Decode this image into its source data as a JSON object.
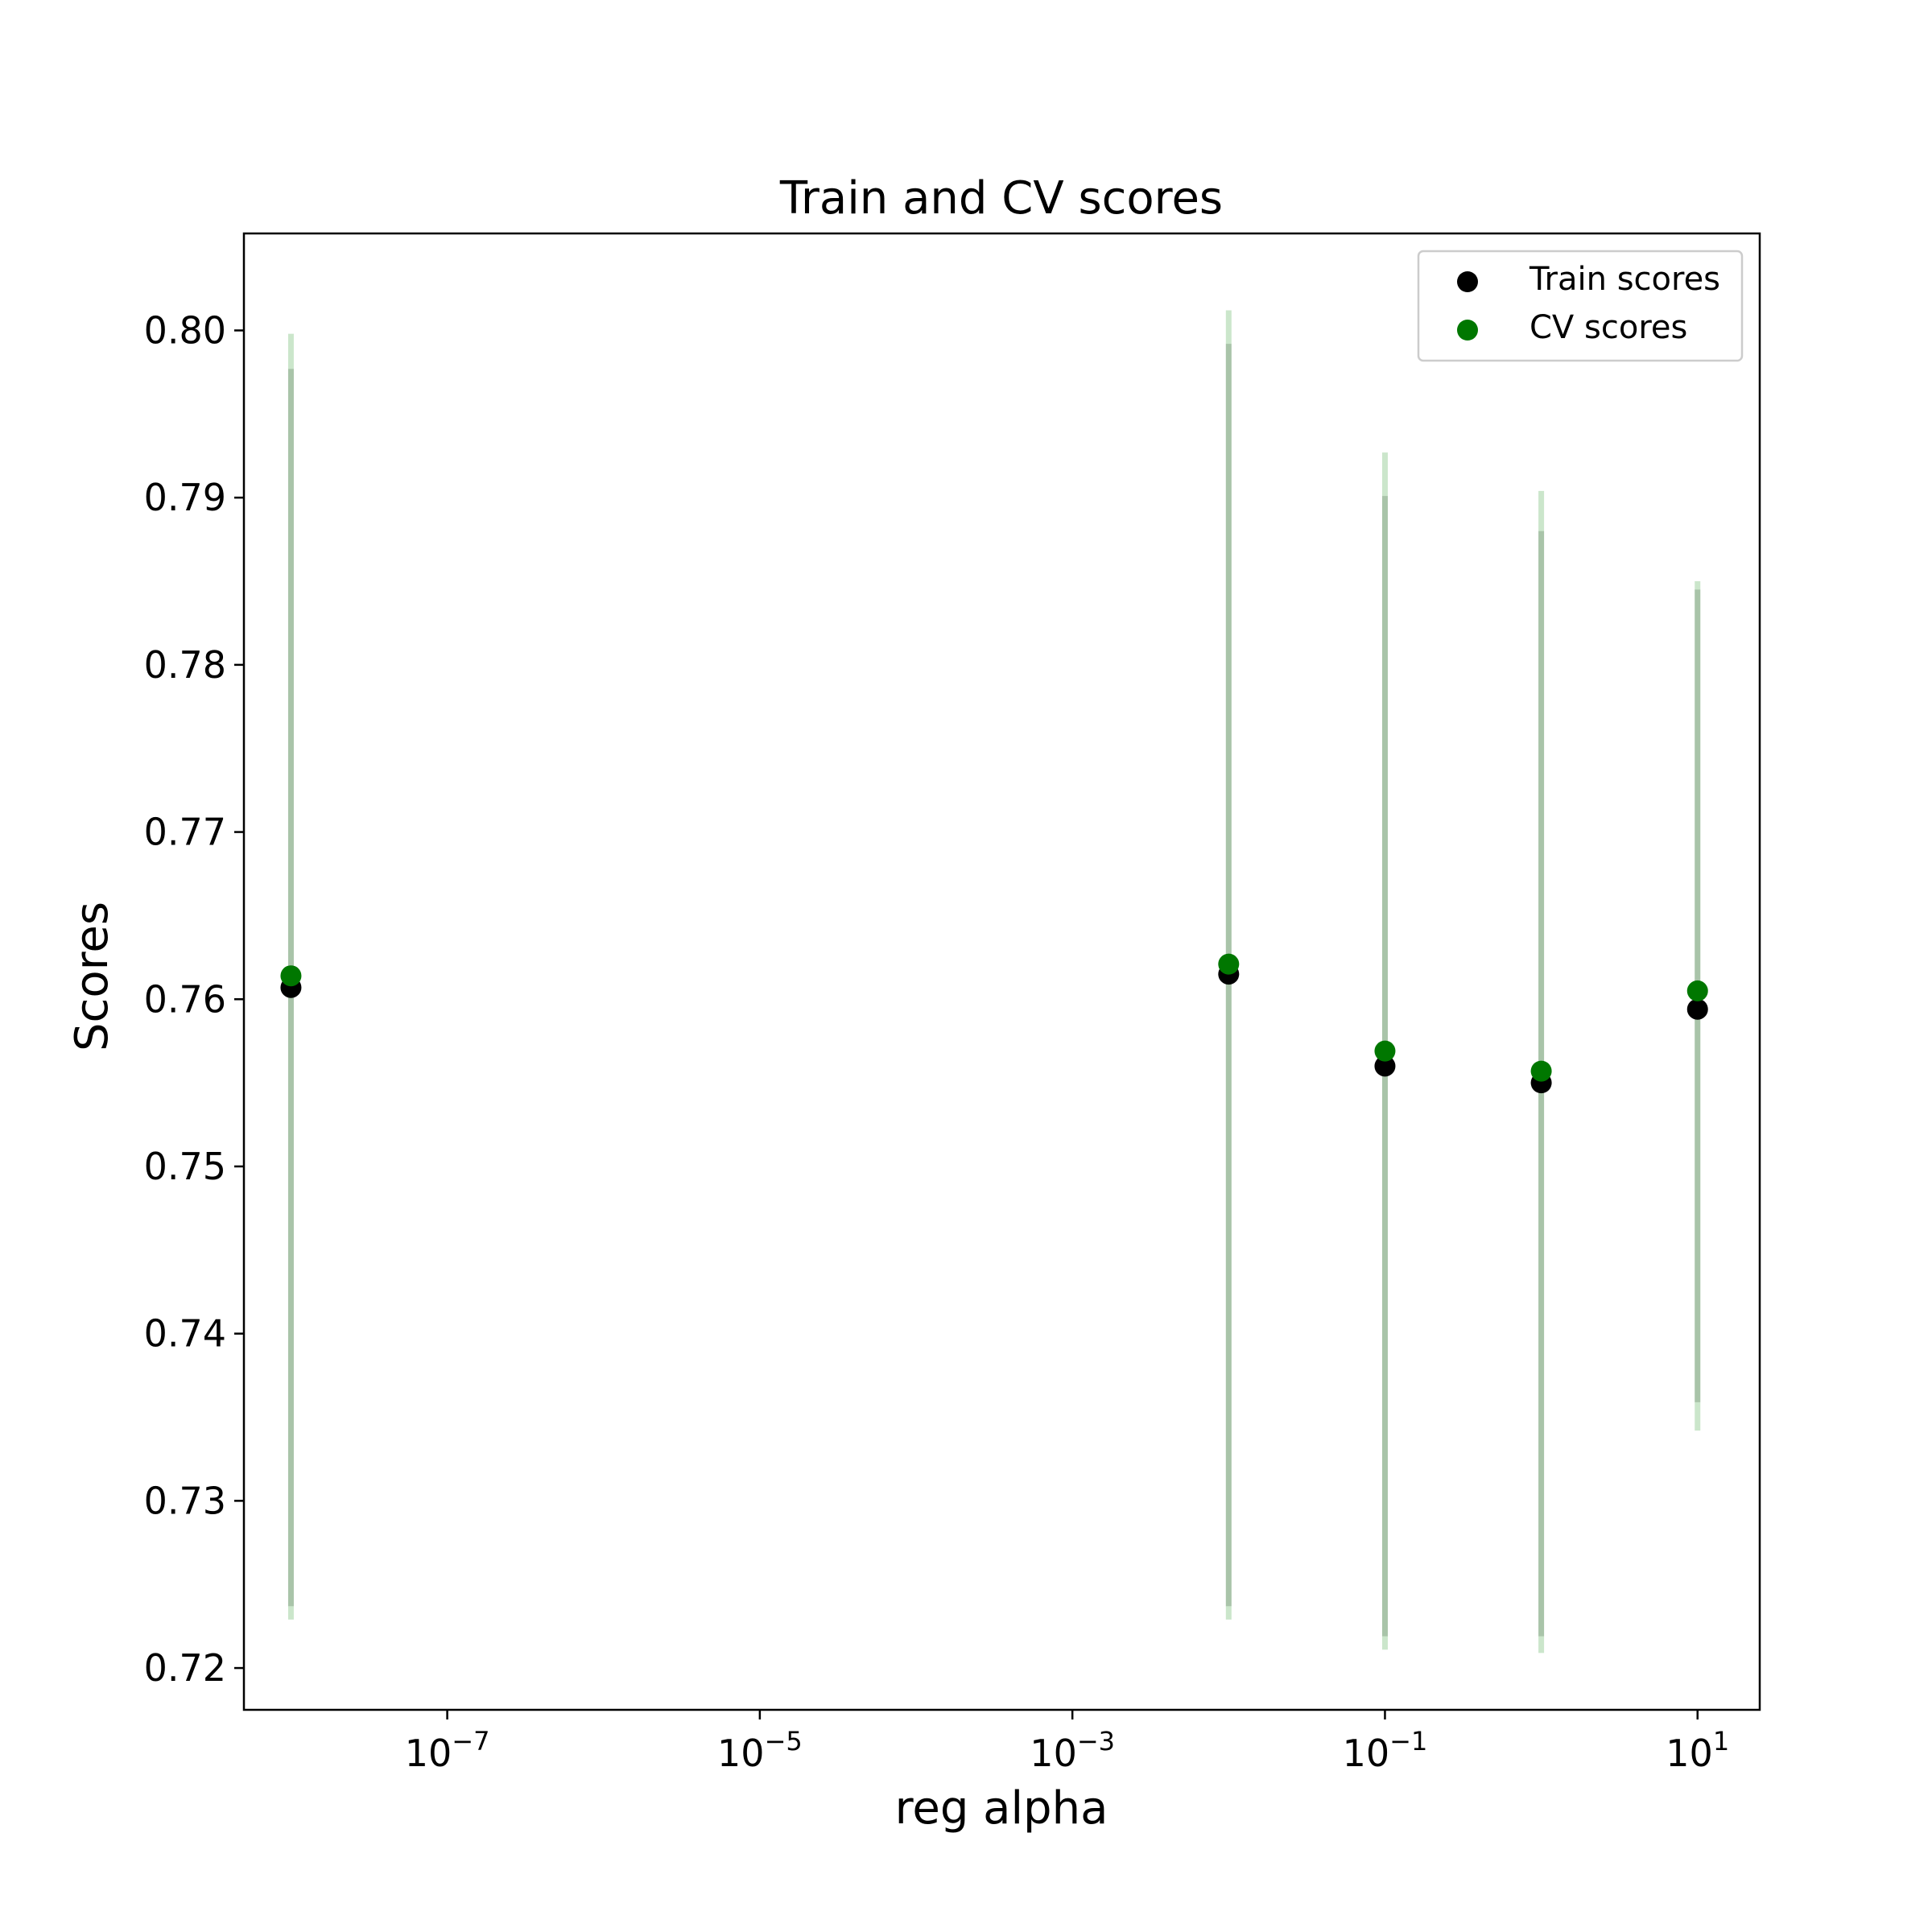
{
  "chart_data": {
    "type": "scatter",
    "title": "Train and CV scores",
    "xlabel": "reg alpha",
    "ylabel": "Scores",
    "x_scale": "log",
    "x_ticks": [
      {
        "value": 1e-07,
        "base": "10",
        "exp": "−7"
      },
      {
        "value": 1e-05,
        "base": "10",
        "exp": "−5"
      },
      {
        "value": 0.001,
        "base": "10",
        "exp": "−3"
      },
      {
        "value": 0.1,
        "base": "10",
        "exp": "−1"
      },
      {
        "value": 10,
        "base": "10",
        "exp": "1"
      }
    ],
    "y_ticks": [
      "0.72",
      "0.73",
      "0.74",
      "0.75",
      "0.76",
      "0.77",
      "0.78",
      "0.79",
      "0.80"
    ],
    "xlim": [
      5e-09,
      25
    ],
    "ylim": [
      0.7175,
      0.8058
    ],
    "x": [
      1e-08,
      0.01,
      0.1,
      1,
      10
    ],
    "series": [
      {
        "name": "Train scores",
        "color": "#000000",
        "values": [
          0.7607,
          0.7615,
          0.756,
          0.755,
          0.7594
        ],
        "err_low": [
          0.7237,
          0.7237,
          0.7219,
          0.7219,
          0.7359
        ],
        "err_high": [
          0.7977,
          0.7992,
          0.7901,
          0.788,
          0.7845
        ]
      },
      {
        "name": "CV scores",
        "color": "#007700",
        "values": [
          0.7614,
          0.7621,
          0.7569,
          0.7557,
          0.7605
        ],
        "err_low": [
          0.7229,
          0.7229,
          0.7211,
          0.7209,
          0.7342
        ],
        "err_high": [
          0.7998,
          0.8012,
          0.7927,
          0.7904,
          0.785
        ]
      }
    ],
    "legend_position": "top-right",
    "grid": false
  }
}
